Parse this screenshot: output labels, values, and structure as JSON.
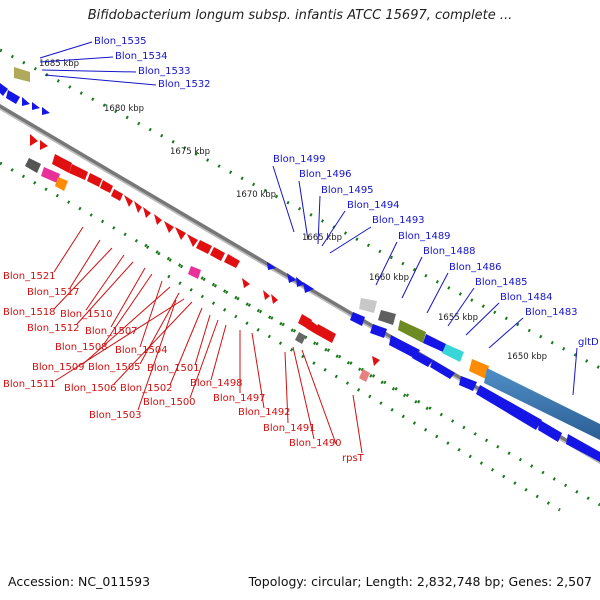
{
  "title": "Bifidobacterium longum subsp. infantis ATCC 15697, complete ...",
  "footer": {
    "accession": "Accession: NC_011593",
    "summary": "Topology: circular; Length: 2,832,748 bp; Genes: 2,507"
  },
  "ticks": [
    "1685 kbp",
    "1680 kbp",
    "1675 kbp",
    "1670 kbp",
    "1665 kbp",
    "1660 kbp",
    "1655 kbp",
    "1650 kbp"
  ],
  "labels_top": [
    "Blon_1535",
    "Blon_1534",
    "Blon_1533",
    "Blon_1532",
    "Blon_1499",
    "Blon_1496",
    "Blon_1495",
    "Blon_1494",
    "Blon_1493",
    "Blon_1489",
    "Blon_1488",
    "Blon_1486",
    "Blon_1485",
    "Blon_1484",
    "Blon_1483",
    "gltD"
  ],
  "labels_bottom": [
    "Blon_1521",
    "Blon_1517",
    "Blon_1518",
    "Blon_1510",
    "Blon_1512",
    "Blon_1507",
    "Blon_1508",
    "Blon_1504",
    "Blon_1509",
    "Blon_1505",
    "Blon_1511",
    "Blon_1506",
    "Blon_1502",
    "Blon_1501",
    "Blon_1500",
    "Blon_1498",
    "Blon_1503",
    "Blon_1497",
    "Blon_1492",
    "Blon_1491",
    "Blon_1490",
    "rpsT"
  ],
  "colors": {
    "forward": "#1010e0",
    "reverse": "#e01010",
    "backbone": "#7a7a7a",
    "tick": "#1a7a1a"
  }
}
